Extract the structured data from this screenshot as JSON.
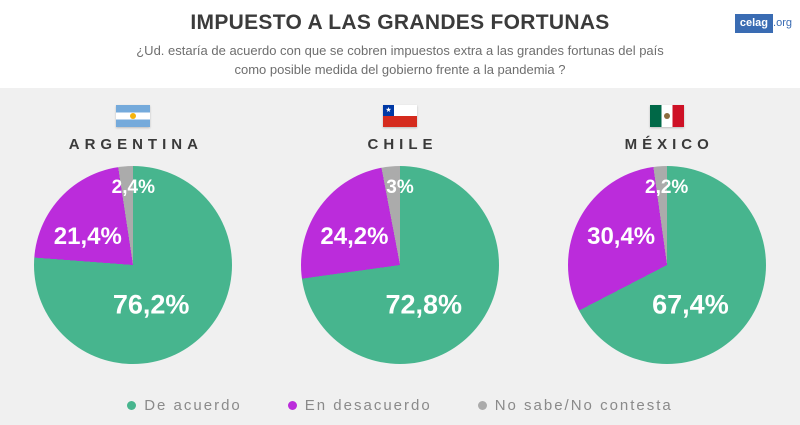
{
  "header": {
    "title": "IMPUESTO A LAS GRANDES FORTUNAS",
    "subtitle": "¿Ud. estaría de acuerdo con que se cobren impuestos extra a las grandes fortunas del país como posible medida del gobierno frente a la pandemia ?",
    "logo_text": "celag",
    "logo_suffix": ".org"
  },
  "colors": {
    "agree": "#47b58e",
    "disagree": "#bb2cdb",
    "no_answer": "#ababab",
    "panel_background": "#f0f0f0",
    "logo_blue": "#3a6cb3"
  },
  "chart_data": [
    {
      "type": "pie",
      "country": "ARGENTINA",
      "flag": "argentina-flag",
      "categories": [
        "De acuerdo",
        "En desacuerdo",
        "No sabe/No contesta"
      ],
      "values": [
        76.2,
        21.4,
        2.4
      ],
      "value_labels": [
        "76,2%",
        "21,4%",
        "2,4%"
      ]
    },
    {
      "type": "pie",
      "country": "CHILE",
      "flag": "chile-flag",
      "categories": [
        "De acuerdo",
        "En desacuerdo",
        "No sabe/No contesta"
      ],
      "values": [
        72.8,
        24.2,
        3
      ],
      "value_labels": [
        "72,8%",
        "24,2%",
        "3%"
      ]
    },
    {
      "type": "pie",
      "country": "MÉXICO",
      "flag": "mexico-flag",
      "categories": [
        "De acuerdo",
        "En desacuerdo",
        "No sabe/No contesta"
      ],
      "values": [
        67.4,
        30.4,
        2.2
      ],
      "value_labels": [
        "67,4%",
        "30,4%",
        "2,2%"
      ]
    }
  ],
  "legend": [
    {
      "label": "De acuerdo",
      "color": "#47b58e"
    },
    {
      "label": "En desacuerdo",
      "color": "#bb2cdb"
    },
    {
      "label": "No sabe/No contesta",
      "color": "#ababab"
    }
  ]
}
